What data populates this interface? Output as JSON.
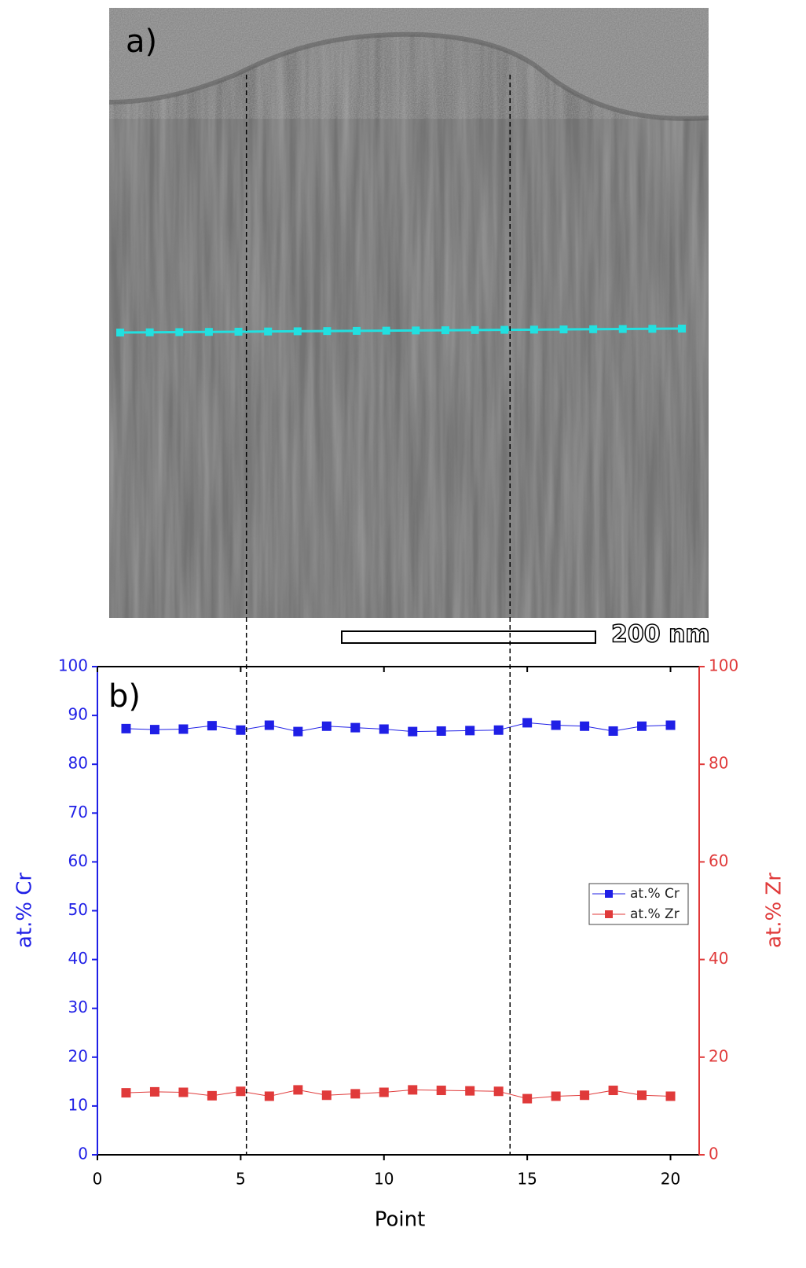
{
  "panel_a": {
    "label": "a)",
    "scale_bar_label": "200 nm"
  },
  "chart_data": {
    "type": "line",
    "panel_label": "b)",
    "x_label": "Point",
    "y_label": "at.% Cr",
    "y2_label": "at.% Zr",
    "x": [
      1,
      2,
      3,
      4,
      5,
      6,
      7,
      8,
      9,
      10,
      11,
      12,
      13,
      14,
      15,
      16,
      17,
      18,
      19,
      20
    ],
    "series": [
      {
        "name": "at.% Cr",
        "color": "#1f1fe6",
        "values": [
          87.3,
          87.1,
          87.2,
          87.9,
          87.0,
          88.0,
          86.7,
          87.8,
          87.5,
          87.2,
          86.7,
          86.8,
          86.9,
          87.0,
          88.5,
          88.0,
          87.8,
          86.8,
          87.8,
          88.0
        ]
      },
      {
        "name": "at.% Zr",
        "color": "#e03a3a",
        "axis": "y2",
        "values": [
          12.7,
          12.9,
          12.8,
          12.1,
          13.0,
          12.0,
          13.3,
          12.2,
          12.5,
          12.8,
          13.3,
          13.2,
          13.1,
          13.0,
          11.5,
          12.0,
          12.2,
          13.2,
          12.2,
          12.0
        ]
      }
    ],
    "xlim": [
      0,
      21
    ],
    "xticks": [
      0,
      5,
      10,
      15,
      20
    ],
    "ylim": [
      0,
      100
    ],
    "yticks": [
      0,
      10,
      20,
      30,
      40,
      50,
      60,
      70,
      80,
      90,
      100
    ],
    "y2lim": [
      0,
      100
    ],
    "y2ticks": [
      0,
      20,
      40,
      60,
      80,
      100
    ],
    "vlines": [
      5.2,
      14.4
    ],
    "legend": "center right"
  }
}
